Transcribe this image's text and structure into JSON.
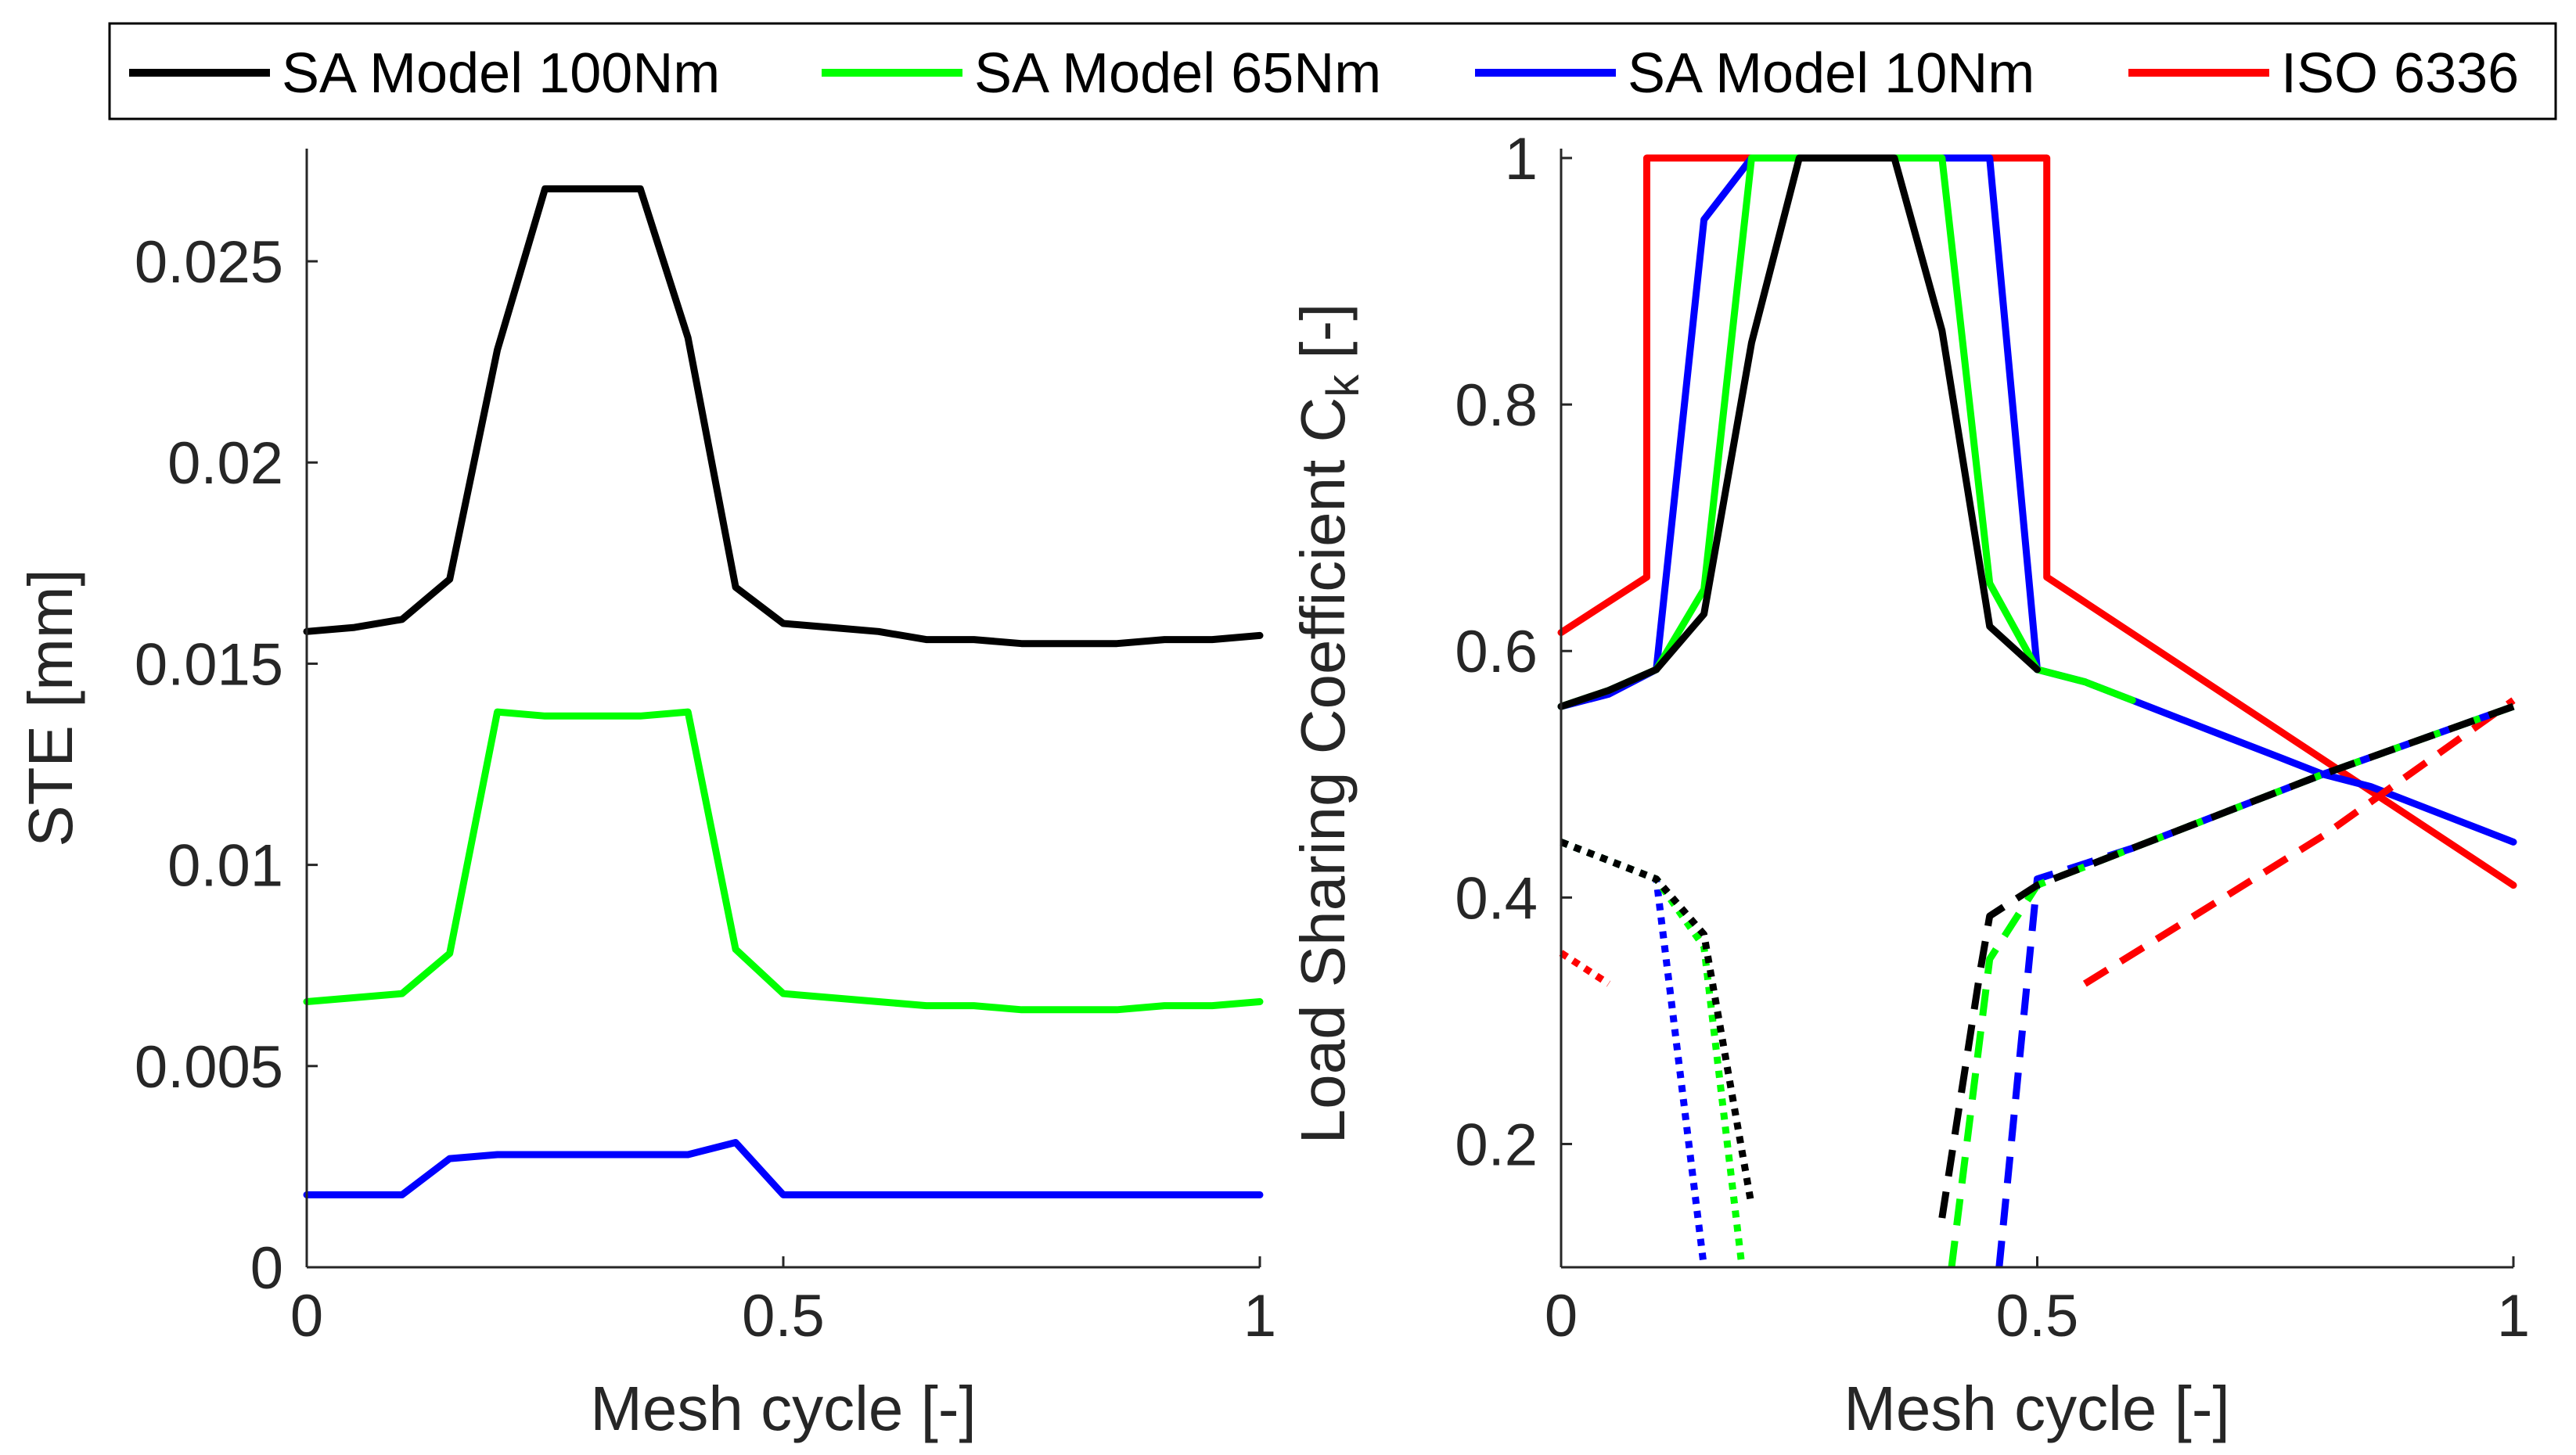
{
  "legend": {
    "entries": [
      {
        "label": "SA Model 100Nm",
        "color": "#000000"
      },
      {
        "label": "SA Model 65Nm",
        "color": "#00ff00"
      },
      {
        "label": "SA Model 10Nm",
        "color": "#0000ff"
      },
      {
        "label": "ISO 6336",
        "color": "#ff0000"
      }
    ]
  },
  "chart_data": [
    {
      "type": "line",
      "xlabel": "Mesh cycle [-]",
      "ylabel": "STE [mm]",
      "xlim": [
        0,
        1
      ],
      "ylim": [
        0,
        0.0278
      ],
      "xticks": [
        0,
        0.5,
        1
      ],
      "xtick_labels": [
        "0",
        "0.5",
        "1"
      ],
      "yticks": [
        0,
        0.005,
        0.01,
        0.015,
        0.02,
        0.025
      ],
      "ytick_labels": [
        "0",
        "0.005",
        "0.01",
        "0.015",
        "0.02",
        "0.025"
      ],
      "series": [
        {
          "name": "SA Model 100Nm",
          "color": "#000000",
          "style": "solid",
          "x": [
            0,
            0.05,
            0.1,
            0.15,
            0.2,
            0.25,
            0.3,
            0.35,
            0.4,
            0.45,
            0.5,
            0.55,
            0.6,
            0.65,
            0.7,
            0.75,
            0.8,
            0.85,
            0.9,
            0.95,
            1
          ],
          "y": [
            0.0158,
            0.0159,
            0.0161,
            0.0171,
            0.0228,
            0.0268,
            0.0268,
            0.0268,
            0.0231,
            0.0169,
            0.016,
            0.0159,
            0.0158,
            0.0156,
            0.0156,
            0.0155,
            0.0155,
            0.0155,
            0.0156,
            0.0156,
            0.0157
          ]
        },
        {
          "name": "SA Model 65Nm",
          "color": "#00ff00",
          "style": "solid",
          "x": [
            0,
            0.05,
            0.1,
            0.15,
            0.2,
            0.25,
            0.3,
            0.35,
            0.4,
            0.45,
            0.5,
            0.55,
            0.6,
            0.65,
            0.7,
            0.75,
            0.8,
            0.85,
            0.9,
            0.95,
            1
          ],
          "y": [
            0.0066,
            0.0067,
            0.0068,
            0.0078,
            0.0138,
            0.0137,
            0.0137,
            0.0137,
            0.0138,
            0.0079,
            0.0068,
            0.0067,
            0.0066,
            0.0065,
            0.0065,
            0.0064,
            0.0064,
            0.0064,
            0.0065,
            0.0065,
            0.0066
          ]
        },
        {
          "name": "SA Model 10Nm",
          "color": "#0000ff",
          "style": "solid",
          "x": [
            0,
            0.05,
            0.1,
            0.15,
            0.2,
            0.25,
            0.3,
            0.35,
            0.4,
            0.45,
            0.5,
            0.55,
            0.6,
            0.65,
            0.7,
            0.75,
            0.8,
            0.85,
            0.9,
            0.95,
            1
          ],
          "y": [
            0.0018,
            0.0018,
            0.0018,
            0.0027,
            0.0028,
            0.0028,
            0.0028,
            0.0028,
            0.0028,
            0.0031,
            0.0018,
            0.0018,
            0.0018,
            0.0018,
            0.0018,
            0.0018,
            0.0018,
            0.0018,
            0.0018,
            0.0018,
            0.0018
          ]
        }
      ]
    },
    {
      "type": "line",
      "xlabel": "Mesh cycle [-]",
      "ylabel": "Load Sharing Coefficient C",
      "ylabel_subscript": "k",
      "ylabel_suffix": "[-]",
      "xlim": [
        0,
        1
      ],
      "ylim": [
        0.1,
        1
      ],
      "xticks": [
        0,
        0.5,
        1
      ],
      "xtick_labels": [
        "0",
        "0.5",
        "1"
      ],
      "yticks": [
        0.2,
        0.4,
        0.6,
        0.8,
        1
      ],
      "ytick_labels": [
        "0.2",
        "0.4",
        "0.6",
        "0.8",
        "1"
      ],
      "series": [
        {
          "name": "ISO 6336",
          "color": "#ff0000",
          "style": "solid",
          "x": [
            0,
            0.09,
            0.09,
            0.51,
            0.51,
            1
          ],
          "y": [
            0.615,
            0.66,
            1,
            1,
            0.66,
            0.41
          ]
        },
        {
          "name": "SA Model 10Nm",
          "color": "#0000ff",
          "style": "solid",
          "x": [
            0,
            0.05,
            0.1,
            0.15,
            0.2,
            0.25,
            0.3,
            0.35,
            0.4,
            0.45,
            0.5,
            0.55,
            0.6,
            0.65,
            0.7,
            0.75,
            0.8,
            0.85,
            0.9,
            0.95,
            1
          ],
          "y": [
            0.555,
            0.565,
            0.585,
            0.95,
            1,
            1,
            1,
            1,
            1,
            1,
            0.585,
            0.575,
            0.56,
            0.545,
            0.53,
            0.515,
            0.5,
            0.49,
            0.475,
            0.46,
            0.445
          ]
        },
        {
          "name": "SA Model 65Nm",
          "color": "#00ff00",
          "style": "solid",
          "x": [
            0,
            0.05,
            0.1,
            0.15,
            0.2,
            0.25,
            0.3,
            0.35,
            0.4,
            0.45,
            0.5,
            0.55,
            0.6
          ],
          "y": [
            0.555,
            0.568,
            0.585,
            0.65,
            1,
            1,
            1,
            1,
            1,
            0.655,
            0.585,
            0.575,
            0.56
          ]
        },
        {
          "name": "SA Model 100Nm",
          "color": "#000000",
          "style": "solid",
          "x": [
            0,
            0.05,
            0.1,
            0.15,
            0.2,
            0.25,
            0.3,
            0.35,
            0.4,
            0.45,
            0.5
          ],
          "y": [
            0.555,
            0.568,
            0.585,
            0.63,
            0.85,
            1,
            1,
            1,
            0.86,
            0.62,
            0.585
          ]
        },
        {
          "name": "ISO 6336 (dotted)",
          "color": "#ff0000",
          "style": "dotted",
          "x": [
            0,
            0.05
          ],
          "y": [
            0.355,
            0.33
          ]
        },
        {
          "name": "ISO 6336 (dashed)",
          "color": "#ff0000",
          "style": "dashed",
          "x": [
            0.55,
            0.8,
            1
          ],
          "y": [
            0.33,
            0.45,
            0.56
          ]
        },
        {
          "name": "SA Model 10Nm (dotted)",
          "color": "#0000ff",
          "style": "dotted",
          "x": [
            0,
            0.1,
            0.15
          ],
          "y": [
            0.445,
            0.415,
            0.1
          ]
        },
        {
          "name": "SA Model 65Nm (dotted)",
          "color": "#00ff00",
          "style": "dotted",
          "x": [
            0,
            0.1,
            0.15,
            0.19
          ],
          "y": [
            0.445,
            0.415,
            0.36,
            0.1
          ]
        },
        {
          "name": "SA Model 100Nm (dotted)",
          "color": "#000000",
          "style": "dotted",
          "x": [
            0,
            0.1,
            0.15,
            0.2
          ],
          "y": [
            0.445,
            0.415,
            0.37,
            0.15
          ]
        },
        {
          "name": "SA Model 10Nm (dashed)",
          "color": "#0000ff",
          "style": "dashed",
          "x": [
            0.46,
            0.5,
            0.6,
            0.8,
            1
          ],
          "y": [
            0.1,
            0.415,
            0.44,
            0.5,
            0.555
          ]
        },
        {
          "name": "SA Model 65Nm (dashed)",
          "color": "#00ff00",
          "style": "dashed",
          "x": [
            0.41,
            0.45,
            0.5,
            0.6,
            0.8,
            1
          ],
          "y": [
            0.1,
            0.35,
            0.41,
            0.44,
            0.5,
            0.555
          ]
        },
        {
          "name": "SA Model 100Nm (dashed)",
          "color": "#000000",
          "style": "dashed",
          "x": [
            0.4,
            0.44,
            0.45,
            0.5,
            0.6,
            0.8,
            1
          ],
          "y": [
            0.14,
            0.34,
            0.385,
            0.41,
            0.44,
            0.5,
            0.555
          ]
        }
      ]
    }
  ]
}
